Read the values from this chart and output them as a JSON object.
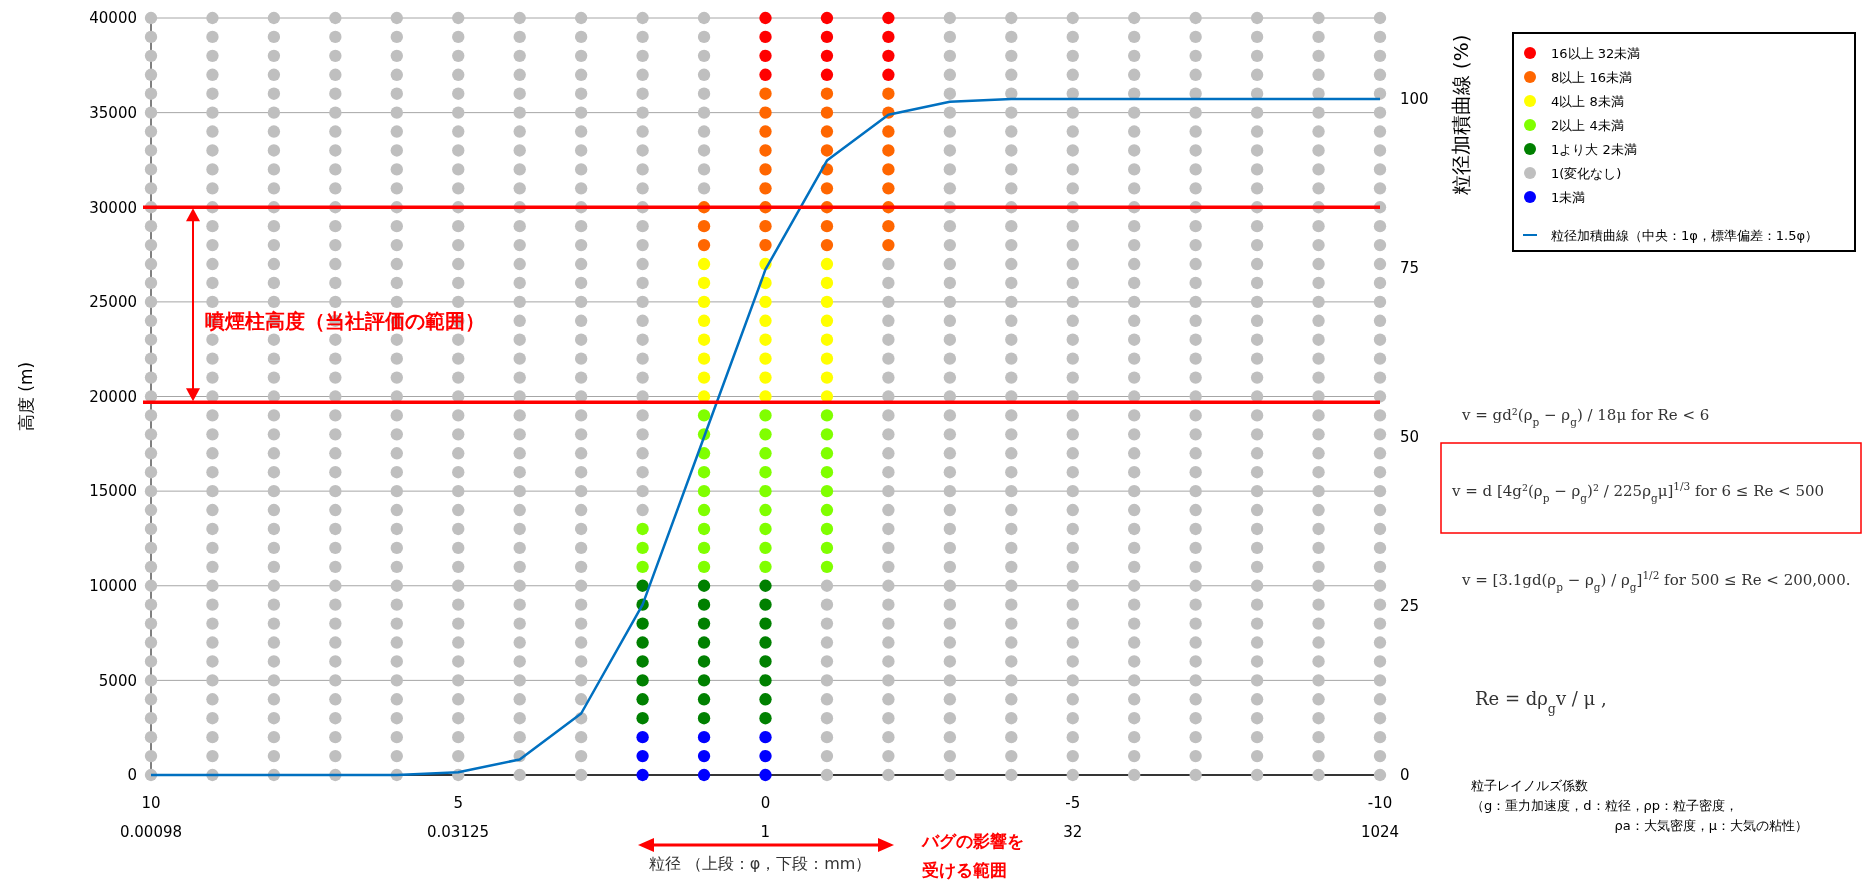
{
  "chart_data": {
    "type": "scatter",
    "xlabel": "粒径 （上段：φ，下段：mm）",
    "ylabel": "高度 (m)",
    "y2label": "粒径加積曲線 (%)",
    "xlim": [
      10,
      -10
    ],
    "xticks": [
      10,
      5,
      0,
      -5,
      -10
    ],
    "x2lim": [
      0.00098,
      1024
    ],
    "x2ticks": [
      0.00098,
      0.03125,
      1,
      32,
      1024
    ],
    "log": "x2",
    "ylim": [
      0,
      40000
    ],
    "yticks": [
      0,
      5000,
      10000,
      15000,
      20000,
      25000,
      30000,
      35000,
      40000
    ],
    "y2lim": [
      0,
      112
    ],
    "y2ticks": [
      0,
      25,
      50,
      75,
      100
    ],
    "grid": "y",
    "legend": "right",
    "marker": "circle",
    "series": [
      {
        "name": "16以上 32未満",
        "color": "#ff0000",
        "x": [
          0,
          0,
          0,
          0,
          -1,
          -1,
          -1,
          -1,
          -2,
          -2,
          -2,
          -2
        ],
        "values": [
          37000,
          38000,
          39000,
          40000,
          37000,
          38000,
          39000,
          40000,
          37000,
          38000,
          39000,
          40000
        ]
      },
      {
        "name": "8以上 16未満",
        "color": "#ff6600",
        "x": [
          1,
          1,
          1,
          0,
          0,
          0,
          0,
          0,
          0,
          0,
          0,
          0,
          -1,
          -1,
          -1,
          -1,
          -1,
          -1,
          -1,
          -1,
          -1,
          -2,
          -2,
          -2,
          -2,
          -2,
          -2,
          -2,
          -2,
          -2
        ],
        "values": [
          28000,
          29000,
          30000,
          28000,
          29000,
          30000,
          31000,
          32000,
          33000,
          34000,
          35000,
          36000,
          28000,
          29000,
          30000,
          31000,
          32000,
          33000,
          34000,
          35000,
          36000,
          28000,
          29000,
          30000,
          31000,
          32000,
          33000,
          34000,
          35000,
          36000
        ]
      },
      {
        "name": "4以上 8未満",
        "color": "#ffff00",
        "x": [
          1,
          1,
          1,
          1,
          1,
          1,
          1,
          1,
          0,
          0,
          0,
          0,
          0,
          0,
          0,
          0,
          -1,
          -1,
          -1,
          -1,
          -1,
          -1,
          -1,
          -1
        ],
        "values": [
          20000,
          21000,
          22000,
          23000,
          24000,
          25000,
          26000,
          27000,
          20000,
          21000,
          22000,
          23000,
          24000,
          25000,
          26000,
          27000,
          20000,
          21000,
          22000,
          23000,
          24000,
          25000,
          26000,
          27000
        ]
      },
      {
        "name": "2以上 4未満",
        "color": "#80ff00",
        "x": [
          2,
          2,
          2,
          1,
          1,
          1,
          1,
          1,
          1,
          1,
          1,
          1,
          0,
          0,
          0,
          0,
          0,
          0,
          0,
          0,
          0,
          -1,
          -1,
          -1,
          -1,
          -1,
          -1,
          -1,
          -1,
          -1
        ],
        "values": [
          11000,
          12000,
          13000,
          11000,
          12000,
          13000,
          14000,
          15000,
          16000,
          17000,
          18000,
          19000,
          11000,
          12000,
          13000,
          14000,
          15000,
          16000,
          17000,
          18000,
          19000,
          11000,
          12000,
          13000,
          14000,
          15000,
          16000,
          17000,
          18000,
          19000
        ]
      },
      {
        "name": "1より大 2未満",
        "color": "#008000",
        "x": [
          2,
          2,
          2,
          2,
          2,
          2,
          2,
          2,
          1,
          1,
          1,
          1,
          1,
          1,
          1,
          1,
          0,
          0,
          0,
          0,
          0,
          0,
          0,
          0
        ],
        "values": [
          3000,
          4000,
          5000,
          6000,
          7000,
          8000,
          9000,
          10000,
          3000,
          4000,
          5000,
          6000,
          7000,
          8000,
          9000,
          10000,
          3000,
          4000,
          5000,
          6000,
          7000,
          8000,
          9000,
          10000
        ]
      },
      {
        "name": "1(変化なし)",
        "color": "#bfbfbf",
        "x": [
          10,
          10,
          10,
          10,
          10,
          10,
          10,
          10,
          10,
          10,
          10,
          10,
          10,
          10,
          10,
          10,
          10,
          10,
          10,
          10,
          10,
          10,
          10,
          10,
          10,
          10,
          10,
          10,
          10,
          10,
          10,
          10,
          10,
          10,
          10,
          10,
          10,
          10,
          10,
          10,
          10,
          9,
          9,
          9,
          9,
          9,
          9,
          9,
          9,
          9,
          9,
          9,
          9,
          9,
          9,
          9,
          9,
          9,
          9,
          9,
          9,
          9,
          9,
          9,
          9,
          9,
          9,
          9,
          9,
          9,
          9,
          9,
          9,
          9,
          9,
          9,
          9,
          9,
          9,
          9,
          9,
          9,
          8,
          8,
          8,
          8,
          8,
          8,
          8,
          8,
          8,
          8,
          8,
          8,
          8,
          8,
          8,
          8,
          8,
          8,
          8,
          8,
          8,
          8,
          8,
          8,
          8,
          8,
          8,
          8,
          8,
          8,
          8,
          8,
          8,
          8,
          8,
          8,
          8,
          8,
          8,
          8,
          8,
          7,
          7,
          7,
          7,
          7,
          7,
          7,
          7,
          7,
          7,
          7,
          7,
          7,
          7,
          7,
          7,
          7,
          7,
          7,
          7,
          7,
          7,
          7,
          7,
          7,
          7,
          7,
          7,
          7,
          7,
          7,
          7,
          7,
          7,
          7,
          7,
          7,
          7,
          7,
          7,
          7,
          6,
          6,
          6,
          6,
          6,
          6,
          6,
          6,
          6,
          6,
          6,
          6,
          6,
          6,
          6,
          6,
          6,
          6,
          6,
          6,
          6,
          6,
          6,
          6,
          6,
          6,
          6,
          6,
          6,
          6,
          6,
          6,
          6,
          6,
          6,
          6,
          6,
          6,
          6,
          6,
          6,
          5,
          5,
          5,
          5,
          5,
          5,
          5,
          5,
          5,
          5,
          5,
          5,
          5,
          5,
          5,
          5,
          5,
          5,
          5,
          5,
          5,
          5,
          5,
          5,
          5,
          5,
          5,
          5,
          5,
          5,
          5,
          5,
          5,
          5,
          5,
          5,
          5,
          5,
          5,
          5,
          5,
          4,
          4,
          4,
          4,
          4,
          4,
          4,
          4,
          4,
          4,
          4,
          4,
          4,
          4,
          4,
          4,
          4,
          4,
          4,
          4,
          4,
          4,
          4,
          4,
          4,
          4,
          4,
          4,
          4,
          4,
          4,
          4,
          4,
          4,
          4,
          4,
          4,
          4,
          4,
          4,
          4,
          3,
          3,
          3,
          3,
          3,
          3,
          3,
          3,
          3,
          3,
          3,
          3,
          3,
          3,
          3,
          3,
          3,
          3,
          3,
          3,
          3,
          3,
          3,
          3,
          3,
          3,
          3,
          3,
          3,
          3,
          3,
          3,
          3,
          3,
          3,
          3,
          3,
          3,
          3,
          3,
          3,
          2,
          2,
          2,
          2,
          2,
          2,
          2,
          2,
          2,
          2,
          2,
          2,
          2,
          2,
          2,
          2,
          2,
          2,
          2,
          2,
          2,
          2,
          2,
          2,
          2,
          2,
          2,
          1,
          1,
          1,
          1,
          1,
          1,
          1,
          1,
          1,
          1,
          -1,
          -1,
          -1,
          -1,
          -1,
          -1,
          -1,
          -1,
          -1,
          -1,
          -1,
          -2,
          -2,
          -2,
          -2,
          -2,
          -2,
          -2,
          -2,
          -2,
          -2,
          -2,
          -2,
          -2,
          -2,
          -2,
          -2,
          -2,
          -2,
          -2,
          -2,
          -2,
          -2,
          -2,
          -2,
          -2,
          -2,
          -2,
          -2,
          -3,
          -3,
          -3,
          -3,
          -3,
          -3,
          -3,
          -3,
          -3,
          -3,
          -3,
          -3,
          -3,
          -3,
          -3,
          -3,
          -3,
          -3,
          -3,
          -3,
          -3,
          -3,
          -3,
          -3,
          -3,
          -3,
          -3,
          -3,
          -3,
          -3,
          -3,
          -3,
          -3,
          -3,
          -3,
          -3,
          -3,
          -3,
          -3,
          -3,
          -3,
          -4,
          -4,
          -4,
          -4,
          -4,
          -4,
          -4,
          -4,
          -4,
          -4,
          -4,
          -4,
          -4,
          -4,
          -4,
          -4,
          -4,
          -4,
          -4,
          -4,
          -4,
          -4,
          -4,
          -4,
          -4,
          -4,
          -4,
          -4,
          -4,
          -4,
          -4,
          -4,
          -4,
          -4,
          -4,
          -4,
          -4,
          -4,
          -4,
          -4,
          -4,
          -5,
          -5,
          -5,
          -5,
          -5,
          -5,
          -5,
          -5,
          -5,
          -5,
          -5,
          -5,
          -5,
          -5,
          -5,
          -5,
          -5,
          -5,
          -5,
          -5,
          -5,
          -5,
          -5,
          -5,
          -5,
          -5,
          -5,
          -5,
          -5,
          -5,
          -5,
          -5,
          -5,
          -5,
          -5,
          -5,
          -5,
          -5,
          -5,
          -5,
          -5,
          -6,
          -6,
          -6,
          -6,
          -6,
          -6,
          -6,
          -6,
          -6,
          -6,
          -6,
          -6,
          -6,
          -6,
          -6,
          -6,
          -6,
          -6,
          -6,
          -6,
          -6,
          -6,
          -6,
          -6,
          -6,
          -6,
          -6,
          -6,
          -6,
          -6,
          -6,
          -6,
          -6,
          -6,
          -6,
          -6,
          -6,
          -6,
          -6,
          -6,
          -6,
          -7,
          -7,
          -7,
          -7,
          -7,
          -7,
          -7,
          -7,
          -7,
          -7,
          -7,
          -7,
          -7,
          -7,
          -7,
          -7,
          -7,
          -7,
          -7,
          -7,
          -7,
          -7,
          -7,
          -7,
          -7,
          -7,
          -7,
          -7,
          -7,
          -7,
          -7,
          -7,
          -7,
          -7,
          -7,
          -7,
          -7,
          -7,
          -7,
          -7,
          -7,
          -8,
          -8,
          -8,
          -8,
          -8,
          -8,
          -8,
          -8,
          -8,
          -8,
          -8,
          -8,
          -8,
          -8,
          -8,
          -8,
          -8,
          -8,
          -8,
          -8,
          -8,
          -8,
          -8,
          -8,
          -8,
          -8,
          -8,
          -8,
          -8,
          -8,
          -8,
          -8,
          -8,
          -8,
          -8,
          -8,
          -8,
          -8,
          -8,
          -8,
          -8,
          -9,
          -9,
          -9,
          -9,
          -9,
          -9,
          -9,
          -9,
          -9,
          -9,
          -9,
          -9,
          -9,
          -9,
          -9,
          -9,
          -9,
          -9,
          -9,
          -9,
          -9,
          -9,
          -9,
          -9,
          -9,
          -9,
          -9,
          -9,
          -9,
          -9,
          -9,
          -9,
          -9,
          -9,
          -9,
          -9,
          -9,
          -9,
          -9,
          -9,
          -9,
          -10,
          -10,
          -10,
          -10,
          -10,
          -10,
          -10,
          -10,
          -10,
          -10,
          -10,
          -10,
          -10,
          -10,
          -10,
          -10,
          -10,
          -10,
          -10,
          -10,
          -10,
          -10,
          -10,
          -10,
          -10,
          -10,
          -10,
          -10,
          -10,
          -10,
          -10,
          -10,
          -10,
          -10,
          -10,
          -10,
          -10,
          -10,
          -10,
          -10,
          -10
        ],
        "values": [
          0,
          1000,
          2000,
          3000,
          4000,
          5000,
          6000,
          7000,
          8000,
          9000,
          10000,
          11000,
          12000,
          13000,
          14000,
          15000,
          16000,
          17000,
          18000,
          19000,
          20000,
          21000,
          22000,
          23000,
          24000,
          25000,
          26000,
          27000,
          28000,
          29000,
          30000,
          31000,
          32000,
          33000,
          34000,
          35000,
          36000,
          37000,
          38000,
          39000,
          40000,
          0,
          1000,
          2000,
          3000,
          4000,
          5000,
          6000,
          7000,
          8000,
          9000,
          10000,
          11000,
          12000,
          13000,
          14000,
          15000,
          16000,
          17000,
          18000,
          19000,
          20000,
          21000,
          22000,
          23000,
          24000,
          25000,
          26000,
          27000,
          28000,
          29000,
          30000,
          31000,
          32000,
          33000,
          34000,
          35000,
          36000,
          37000,
          38000,
          39000,
          40000,
          0,
          1000,
          2000,
          3000,
          4000,
          5000,
          6000,
          7000,
          8000,
          9000,
          10000,
          11000,
          12000,
          13000,
          14000,
          15000,
          16000,
          17000,
          18000,
          19000,
          20000,
          21000,
          22000,
          23000,
          24000,
          25000,
          26000,
          27000,
          28000,
          29000,
          30000,
          31000,
          32000,
          33000,
          34000,
          35000,
          36000,
          37000,
          38000,
          39000,
          40000,
          0,
          1000,
          2000,
          3000,
          4000,
          5000,
          6000,
          7000,
          8000,
          9000,
          10000,
          11000,
          12000,
          13000,
          14000,
          15000,
          16000,
          17000,
          18000,
          19000,
          20000,
          21000,
          22000,
          23000,
          24000,
          25000,
          26000,
          27000,
          28000,
          29000,
          30000,
          31000,
          32000,
          33000,
          34000,
          35000,
          36000,
          37000,
          38000,
          39000,
          40000,
          0,
          1000,
          2000,
          3000,
          4000,
          5000,
          6000,
          7000,
          8000,
          9000,
          10000,
          11000,
          12000,
          13000,
          14000,
          15000,
          16000,
          17000,
          18000,
          19000,
          20000,
          21000,
          22000,
          23000,
          24000,
          25000,
          26000,
          27000,
          28000,
          29000,
          30000,
          31000,
          32000,
          33000,
          34000,
          35000,
          36000,
          37000,
          38000,
          39000,
          40000,
          0,
          1000,
          2000,
          3000,
          4000,
          5000,
          6000,
          7000,
          8000,
          9000,
          10000,
          11000,
          12000,
          13000,
          14000,
          15000,
          16000,
          17000,
          18000,
          19000,
          20000,
          21000,
          22000,
          23000,
          24000,
          25000,
          26000,
          27000,
          28000,
          29000,
          30000,
          31000,
          32000,
          33000,
          34000,
          35000,
          36000,
          37000,
          38000,
          39000,
          40000,
          0,
          1000,
          2000,
          3000,
          4000,
          5000,
          6000,
          7000,
          8000,
          9000,
          10000,
          11000,
          12000,
          13000,
          14000,
          15000,
          16000,
          17000,
          18000,
          19000,
          20000,
          21000,
          22000,
          23000,
          24000,
          25000,
          26000,
          27000,
          28000,
          29000,
          30000,
          31000,
          32000,
          33000,
          34000,
          35000,
          36000,
          37000,
          38000,
          39000,
          40000,
          0,
          1000,
          2000,
          3000,
          4000,
          5000,
          6000,
          7000,
          8000,
          9000,
          10000,
          11000,
          12000,
          13000,
          14000,
          15000,
          16000,
          17000,
          18000,
          19000,
          20000,
          21000,
          22000,
          23000,
          24000,
          25000,
          26000,
          27000,
          28000,
          29000,
          30000,
          31000,
          32000,
          33000,
          34000,
          35000,
          36000,
          37000,
          38000,
          39000,
          40000,
          14000,
          15000,
          16000,
          17000,
          18000,
          19000,
          20000,
          21000,
          22000,
          23000,
          24000,
          25000,
          26000,
          27000,
          28000,
          29000,
          30000,
          31000,
          32000,
          33000,
          34000,
          35000,
          36000,
          37000,
          38000,
          39000,
          40000,
          31000,
          32000,
          33000,
          34000,
          35000,
          36000,
          37000,
          38000,
          39000,
          40000,
          0,
          1000,
          2000,
          3000,
          4000,
          5000,
          6000,
          7000,
          8000,
          9000,
          10000,
          0,
          1000,
          2000,
          3000,
          4000,
          5000,
          6000,
          7000,
          8000,
          9000,
          10000,
          11000,
          12000,
          13000,
          14000,
          15000,
          16000,
          17000,
          18000,
          19000,
          20000,
          21000,
          22000,
          23000,
          24000,
          25000,
          26000,
          27000,
          0,
          1000,
          2000,
          3000,
          4000,
          5000,
          6000,
          7000,
          8000,
          9000,
          10000,
          11000,
          12000,
          13000,
          14000,
          15000,
          16000,
          17000,
          18000,
          19000,
          20000,
          21000,
          22000,
          23000,
          24000,
          25000,
          26000,
          27000,
          28000,
          29000,
          30000,
          31000,
          32000,
          33000,
          34000,
          35000,
          36000,
          37000,
          38000,
          39000,
          40000,
          0,
          1000,
          2000,
          3000,
          4000,
          5000,
          6000,
          7000,
          8000,
          9000,
          10000,
          11000,
          12000,
          13000,
          14000,
          15000,
          16000,
          17000,
          18000,
          19000,
          20000,
          21000,
          22000,
          23000,
          24000,
          25000,
          26000,
          27000,
          28000,
          29000,
          30000,
          31000,
          32000,
          33000,
          34000,
          35000,
          36000,
          37000,
          38000,
          39000,
          40000,
          0,
          1000,
          2000,
          3000,
          4000,
          5000,
          6000,
          7000,
          8000,
          9000,
          10000,
          11000,
          12000,
          13000,
          14000,
          15000,
          16000,
          17000,
          18000,
          19000,
          20000,
          21000,
          22000,
          23000,
          24000,
          25000,
          26000,
          27000,
          28000,
          29000,
          30000,
          31000,
          32000,
          33000,
          34000,
          35000,
          36000,
          37000,
          38000,
          39000,
          40000,
          0,
          1000,
          2000,
          3000,
          4000,
          5000,
          6000,
          7000,
          8000,
          9000,
          10000,
          11000,
          12000,
          13000,
          14000,
          15000,
          16000,
          17000,
          18000,
          19000,
          20000,
          21000,
          22000,
          23000,
          24000,
          25000,
          26000,
          27000,
          28000,
          29000,
          30000,
          31000,
          32000,
          33000,
          34000,
          35000,
          36000,
          37000,
          38000,
          39000,
          40000,
          0,
          1000,
          2000,
          3000,
          4000,
          5000,
          6000,
          7000,
          8000,
          9000,
          10000,
          11000,
          12000,
          13000,
          14000,
          15000,
          16000,
          17000,
          18000,
          19000,
          20000,
          21000,
          22000,
          23000,
          24000,
          25000,
          26000,
          27000,
          28000,
          29000,
          30000,
          31000,
          32000,
          33000,
          34000,
          35000,
          36000,
          37000,
          38000,
          39000,
          40000,
          0,
          1000,
          2000,
          3000,
          4000,
          5000,
          6000,
          7000,
          8000,
          9000,
          10000,
          11000,
          12000,
          13000,
          14000,
          15000,
          16000,
          17000,
          18000,
          19000,
          20000,
          21000,
          22000,
          23000,
          24000,
          25000,
          26000,
          27000,
          28000,
          29000,
          30000,
          31000,
          32000,
          33000,
          34000,
          35000,
          36000,
          37000,
          38000,
          39000,
          40000,
          0,
          1000,
          2000,
          3000,
          4000,
          5000,
          6000,
          7000,
          8000,
          9000,
          10000,
          11000,
          12000,
          13000,
          14000,
          15000,
          16000,
          17000,
          18000,
          19000,
          20000,
          21000,
          22000,
          23000,
          24000,
          25000,
          26000,
          27000,
          28000,
          29000,
          30000,
          31000,
          32000,
          33000,
          34000,
          35000,
          36000,
          37000,
          38000,
          39000,
          40000,
          0,
          1000,
          2000,
          3000,
          4000,
          5000,
          6000,
          7000,
          8000,
          9000,
          10000,
          11000,
          12000,
          13000,
          14000,
          15000,
          16000,
          17000,
          18000,
          19000,
          20000,
          21000,
          22000,
          23000,
          24000,
          25000,
          26000,
          27000,
          28000,
          29000,
          30000,
          31000,
          32000,
          33000,
          34000,
          35000,
          36000,
          37000,
          38000,
          39000,
          40000
        ]
      },
      {
        "name": "1未満",
        "color": "#0000ff",
        "x": [
          2,
          2,
          2,
          1,
          1,
          1,
          0,
          0,
          0
        ],
        "values": [
          0,
          1000,
          2000,
          0,
          1000,
          2000,
          0,
          1000,
          2000
        ]
      },
      {
        "name": "粒径加積曲線（中央：1φ，標準偏差：1.5φ）",
        "type": "line",
        "marker": "none",
        "axis": "y2",
        "color": "#0070c0",
        "x": [
          10,
          9,
          8,
          7,
          6,
          5,
          4,
          3,
          2,
          1,
          0,
          -1,
          -2,
          -3,
          -4,
          -5,
          -6,
          -7,
          -8,
          -9,
          -10
        ],
        "values": [
          0,
          0,
          0,
          0,
          0,
          0.4,
          2.3,
          9.1,
          25.2,
          50,
          74.8,
          90.9,
          97.7,
          99.6,
          100,
          100,
          100,
          100,
          100,
          100,
          100
        ]
      }
    ],
    "ref_lines": [
      {
        "axis": "y",
        "value": 30000,
        "color": "#ff0000"
      },
      {
        "axis": "y",
        "value": 19700,
        "color": "#ff0000"
      }
    ],
    "annotations": [
      "噴煙柱高度（当社評価の範囲）",
      "バグの影響を",
      "受ける範囲",
      "v = gd²(ρ$_{p}$ − ρ$_{g}$) / 18μ     for  Re < 6",
      "v = d [4g²(ρ$_{p}$ − ρ$_{g}$)² / 225ρ$_{g}$μ]$^{1/3}$     for  6 ≤ Re < 500",
      "v = [3.1gd(ρ$_{p}$ − ρ$_{g}$) / ρ$_{g}$]$^{1/2}$     for  500 ≤ Re < 200,000.",
      "Re = dρ$_{g}$v / μ ,",
      "粒子レイノルズ係数",
      "（g：重力加速度，d：粒径，ρp：粒子密度，",
      "ρa：大気密度，μ：大気の粘性）"
    ]
  }
}
